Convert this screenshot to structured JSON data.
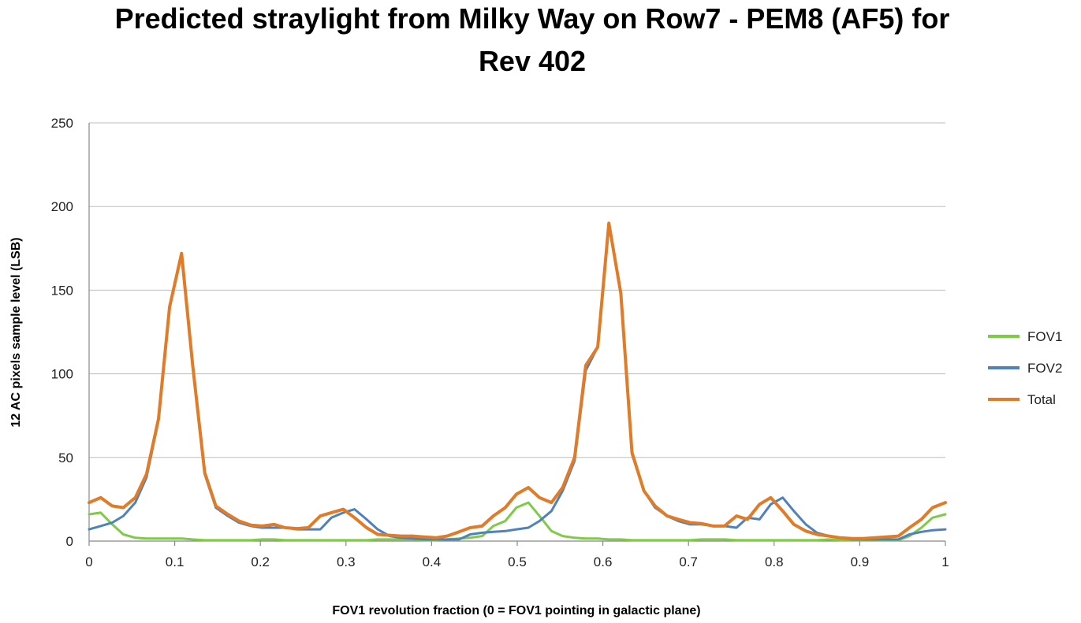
{
  "chart_data": {
    "type": "line",
    "title_lines": [
      "Predicted straylight from Milky Way on Row7 - PEM8 (AF5) for",
      "Rev 402"
    ],
    "xlabel": "FOV1 revolution fraction (0 = FOV1 pointing in galactic plane)",
    "ylabel": "12 AC pixels sample level (LSB)",
    "xlim": [
      0,
      1
    ],
    "ylim": [
      0,
      250
    ],
    "xticks": [
      "0",
      "0.1",
      "0.2",
      "0.3",
      "0.4",
      "0.5",
      "0.6",
      "0.7",
      "0.8",
      "0.9",
      "1"
    ],
    "yticks": [
      "0",
      "50",
      "100",
      "150",
      "200",
      "250"
    ],
    "grid": "horizontal",
    "legend_position": "right",
    "x": [
      0,
      0.0135,
      0.027,
      0.04,
      0.054,
      0.067,
      0.081,
      0.094,
      0.108,
      0.121,
      0.135,
      0.148,
      0.162,
      0.175,
      0.189,
      0.202,
      0.216,
      0.229,
      0.243,
      0.256,
      0.27,
      0.283,
      0.297,
      0.31,
      0.324,
      0.337,
      0.351,
      0.364,
      0.378,
      0.391,
      0.405,
      0.418,
      0.432,
      0.445,
      0.459,
      0.472,
      0.486,
      0.499,
      0.513,
      0.526,
      0.54,
      0.553,
      0.567,
      0.58,
      0.594,
      0.607,
      0.621,
      0.634,
      0.648,
      0.661,
      0.675,
      0.688,
      0.702,
      0.715,
      0.729,
      0.742,
      0.756,
      0.769,
      0.783,
      0.796,
      0.81,
      0.823,
      0.837,
      0.85,
      0.864,
      0.877,
      0.891,
      0.904,
      0.918,
      0.931,
      0.945,
      0.958,
      0.972,
      0.985,
      1.0
    ],
    "series": [
      {
        "name": "FOV1",
        "color": "#7fca46",
        "values": [
          16,
          17,
          10,
          4,
          2,
          1.5,
          1.5,
          1.5,
          1.5,
          1,
          0.5,
          0.5,
          0.5,
          0.5,
          0.5,
          1,
          1,
          0.5,
          0.5,
          0.5,
          0.5,
          0.5,
          0.5,
          0.5,
          0.5,
          1,
          1,
          1,
          1,
          0.5,
          0.5,
          1,
          1.5,
          2,
          3,
          9,
          12,
          20,
          23,
          15,
          6,
          3,
          2,
          1.5,
          1.5,
          1,
          1,
          0.5,
          0.5,
          0.5,
          0.5,
          0.5,
          0.5,
          1,
          1,
          1,
          0.5,
          0.5,
          0.5,
          0.5,
          0.5,
          0.5,
          0.5,
          0.5,
          1,
          0.5,
          0.5,
          0.5,
          0.5,
          0.5,
          0.5,
          3,
          8,
          14,
          16
        ]
      },
      {
        "name": "FOV2",
        "color": "#4f81bd",
        "values": [
          7,
          9,
          11,
          15,
          23,
          38,
          72,
          140,
          172,
          105,
          40,
          20,
          15,
          11,
          9,
          8,
          8,
          8,
          7,
          7,
          7,
          14,
          17,
          19,
          13,
          7,
          3,
          2,
          1.5,
          1,
          1,
          1,
          1,
          4,
          5,
          5.5,
          6,
          7,
          8,
          12,
          18,
          30,
          48,
          102,
          116,
          190,
          148,
          52,
          30,
          20,
          15,
          12,
          10,
          10,
          9,
          9,
          8,
          14,
          13,
          22,
          26,
          18,
          10,
          5,
          3,
          2,
          1,
          1,
          1,
          1,
          1,
          4,
          5.5,
          6.5,
          7
        ]
      },
      {
        "name": "Total",
        "color": "#e07b27",
        "values": [
          23,
          26,
          21,
          20,
          26,
          40,
          73,
          140,
          172,
          105,
          41,
          21,
          16,
          12,
          9.5,
          9,
          10,
          8,
          7.5,
          8,
          15,
          17,
          19,
          14,
          8,
          4,
          3.5,
          3,
          3,
          2.5,
          2,
          3,
          5.5,
          8,
          9,
          15,
          20,
          28,
          32,
          26,
          23,
          32,
          50,
          105,
          116,
          190,
          148,
          53,
          30,
          21,
          15,
          13,
          11,
          10.5,
          9,
          9,
          15,
          13,
          22,
          26,
          18,
          10,
          6,
          4,
          3,
          2,
          1.5,
          1.5,
          2,
          2.5,
          3,
          8,
          13,
          20,
          23
        ]
      }
    ]
  }
}
